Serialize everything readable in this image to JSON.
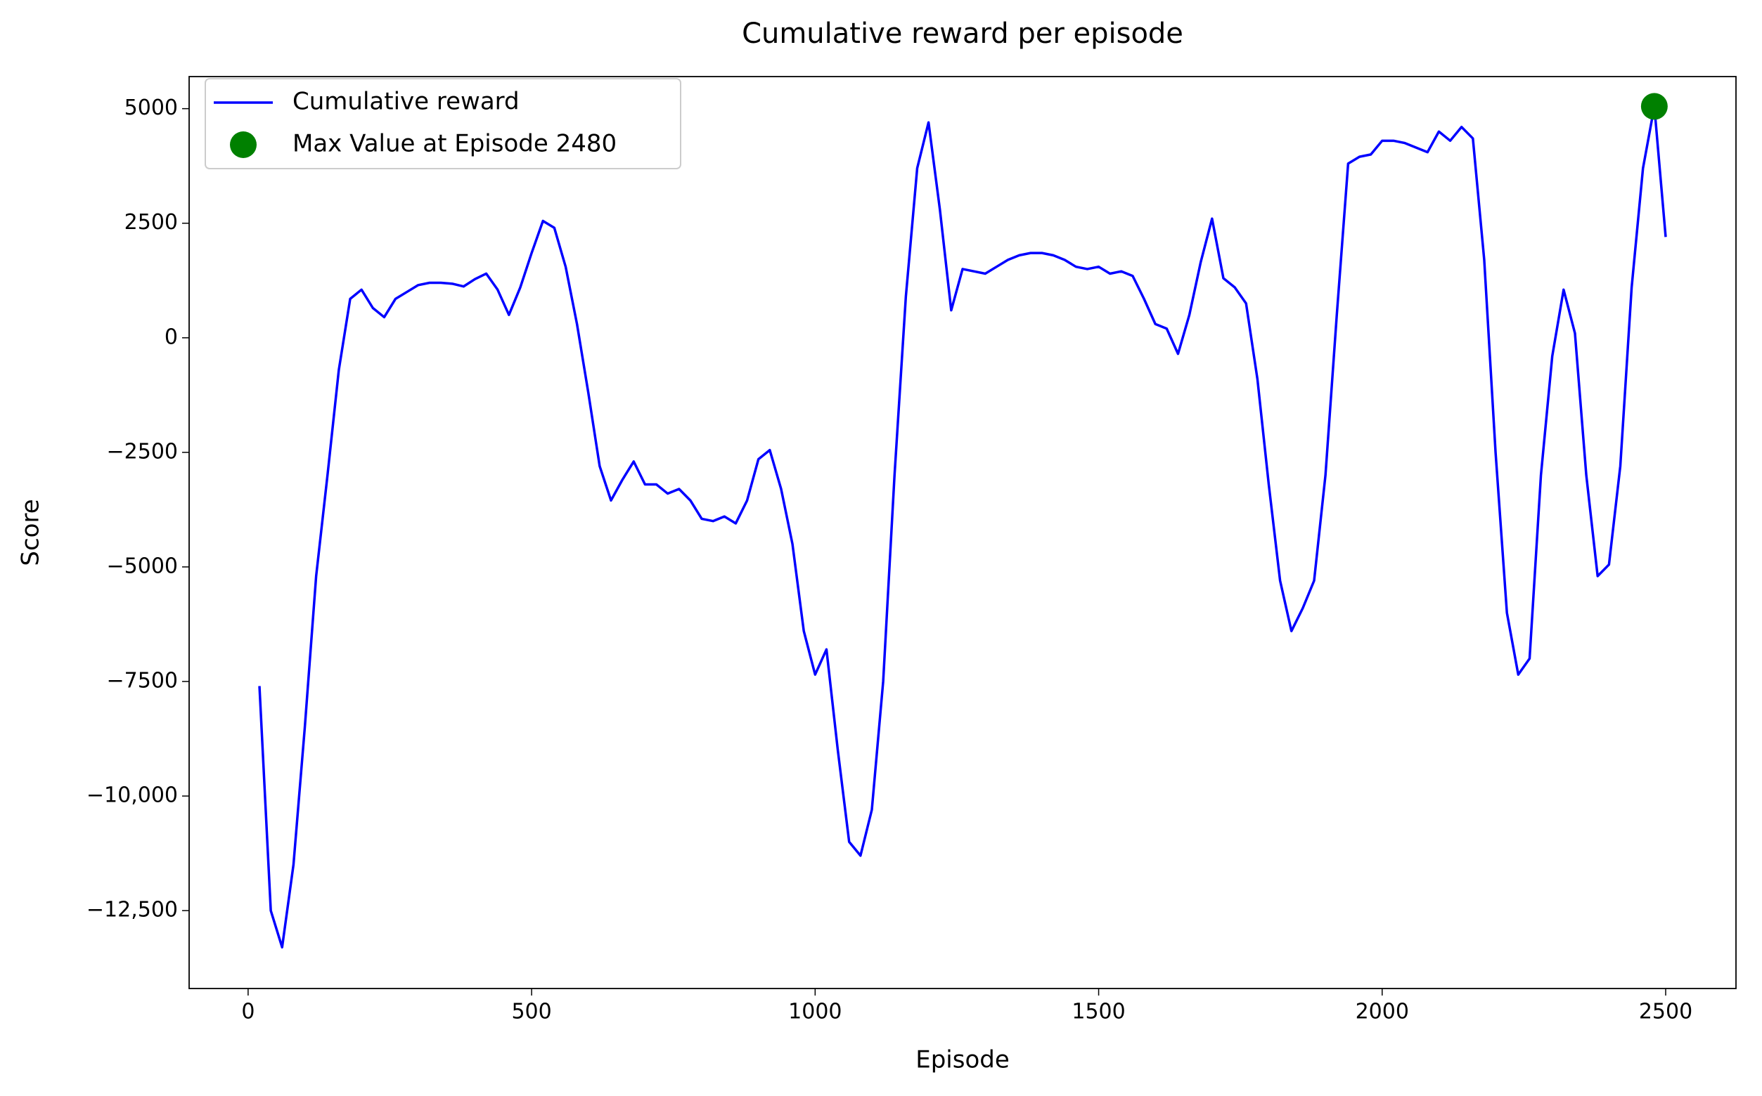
{
  "chart_data": {
    "type": "line",
    "title": "Cumulative reward per episode",
    "xlabel": "Episode",
    "ylabel": "Score",
    "x": [
      20,
      40,
      60,
      80,
      100,
      120,
      140,
      160,
      180,
      200,
      220,
      240,
      260,
      280,
      300,
      320,
      340,
      360,
      380,
      400,
      420,
      440,
      460,
      480,
      500,
      520,
      540,
      560,
      580,
      600,
      620,
      640,
      660,
      680,
      700,
      720,
      740,
      760,
      780,
      800,
      820,
      840,
      860,
      880,
      900,
      920,
      940,
      960,
      980,
      1000,
      1020,
      1040,
      1060,
      1080,
      1100,
      1120,
      1140,
      1160,
      1180,
      1200,
      1220,
      1240,
      1260,
      1280,
      1300,
      1320,
      1340,
      1360,
      1380,
      1400,
      1420,
      1440,
      1460,
      1480,
      1500,
      1520,
      1540,
      1560,
      1580,
      1600,
      1620,
      1640,
      1660,
      1680,
      1700,
      1720,
      1740,
      1760,
      1780,
      1800,
      1820,
      1840,
      1860,
      1880,
      1900,
      1920,
      1940,
      1960,
      1980,
      2000,
      2020,
      2040,
      2060,
      2080,
      2100,
      2120,
      2140,
      2160,
      2180,
      2200,
      2220,
      2240,
      2260,
      2280,
      2300,
      2320,
      2340,
      2360,
      2380,
      2400,
      2420,
      2440,
      2460,
      2480,
      2500
    ],
    "series": [
      {
        "name": "Cumulative reward",
        "color": "blue",
        "values": [
          -7600,
          -12500,
          -13300,
          -11500,
          -8500,
          -5200,
          -3000,
          -700,
          850,
          1050,
          650,
          450,
          850,
          1000,
          1150,
          1200,
          1200,
          1180,
          1120,
          1280,
          1400,
          1050,
          500,
          1100,
          1850,
          2550,
          2400,
          1550,
          300,
          -1200,
          -2800,
          -3550,
          -3100,
          -2700,
          -3200,
          -3200,
          -3400,
          -3300,
          -3550,
          -3950,
          -4000,
          -3900,
          -4050,
          -3550,
          -2650,
          -2450,
          -3300,
          -4500,
          -6400,
          -7350,
          -6800,
          -9000,
          -11000,
          -11300,
          -10300,
          -7500,
          -3000,
          900,
          3700,
          4700,
          2800,
          600,
          1500,
          1450,
          1400,
          1550,
          1700,
          1800,
          1850,
          1850,
          1800,
          1700,
          1550,
          1500,
          1550,
          1400,
          1450,
          1350,
          850,
          300,
          200,
          -350,
          500,
          1650,
          2600,
          1300,
          1100,
          750,
          -900,
          -3200,
          -5300,
          -6400,
          -5900,
          -5300,
          -3000,
          500,
          3800,
          3950,
          4000,
          4300,
          4300,
          4250,
          4150,
          4050,
          4500,
          4300,
          4600,
          4350,
          1700,
          -2500,
          -6000,
          -7350,
          -7000,
          -3000,
          -400,
          1050,
          100,
          -3000,
          -5200,
          -4950,
          -2800,
          1100,
          3700,
          5050,
          2200
        ]
      },
      {
        "name": "Max Value at Episode 2480",
        "type": "scatter",
        "color": "green",
        "x": [
          2480
        ],
        "values": [
          5050
        ]
      }
    ],
    "xlim": [
      -104,
      2624
    ],
    "xticks": [
      0,
      500,
      1000,
      1500,
      2000,
      2500
    ],
    "ylim": [
      -14200,
      5700
    ],
    "yticks": [
      {
        "value": -12500,
        "label": "−12,500"
      },
      {
        "value": -10000,
        "label": "−10,000"
      },
      {
        "value": -7500,
        "label": "−7500"
      },
      {
        "value": -5000,
        "label": "−5000"
      },
      {
        "value": -2500,
        "label": "−2500"
      },
      0,
      2500,
      5000
    ],
    "legend": "upper left"
  }
}
